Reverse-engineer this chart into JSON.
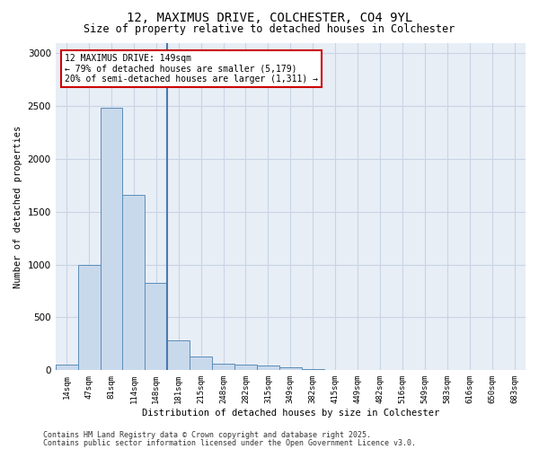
{
  "title_line1": "12, MAXIMUS DRIVE, COLCHESTER, CO4 9YL",
  "title_line2": "Size of property relative to detached houses in Colchester",
  "xlabel": "Distribution of detached houses by size in Colchester",
  "ylabel": "Number of detached properties",
  "categories": [
    "14sqm",
    "47sqm",
    "81sqm",
    "114sqm",
    "148sqm",
    "181sqm",
    "215sqm",
    "248sqm",
    "282sqm",
    "315sqm",
    "349sqm",
    "382sqm",
    "415sqm",
    "449sqm",
    "482sqm",
    "516sqm",
    "549sqm",
    "583sqm",
    "616sqm",
    "650sqm",
    "683sqm"
  ],
  "values": [
    50,
    1000,
    2480,
    1660,
    830,
    280,
    130,
    60,
    55,
    45,
    30,
    8,
    0,
    0,
    0,
    0,
    0,
    0,
    0,
    0,
    0
  ],
  "bar_color": "#c9d9ec",
  "bar_edge_color": "#5b8db8",
  "annotation_text": "12 MAXIMUS DRIVE: 149sqm\n← 79% of detached houses are smaller (5,179)\n20% of semi-detached houses are larger (1,311) →",
  "annotation_box_color": "#ffffff",
  "annotation_box_edge": "#cc0000",
  "vline_color": "#4a7aab",
  "ylim": [
    0,
    3100
  ],
  "yticks": [
    0,
    500,
    1000,
    1500,
    2000,
    2500,
    3000
  ],
  "grid_color": "#c8d4e4",
  "bg_color": "#e8eef6",
  "footer_line1": "Contains HM Land Registry data © Crown copyright and database right 2025.",
  "footer_line2": "Contains public sector information licensed under the Open Government Licence v3.0."
}
